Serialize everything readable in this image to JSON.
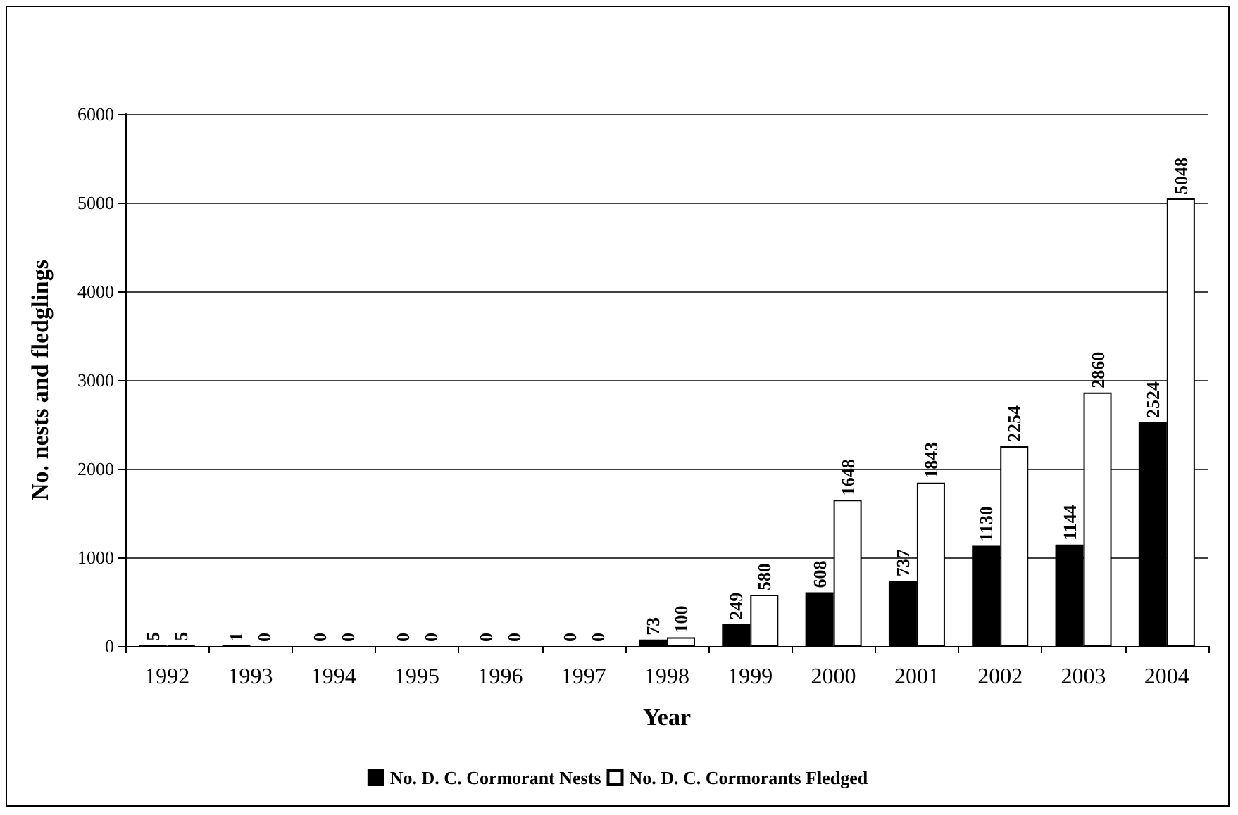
{
  "chart_data": {
    "type": "bar",
    "xlabel": "Year",
    "ylabel": "No. nests and fledglings",
    "categories": [
      "1992",
      "1993",
      "1994",
      "1995",
      "1996",
      "1997",
      "1998",
      "1999",
      "2000",
      "2001",
      "2002",
      "2003",
      "2004"
    ],
    "series": [
      {
        "name": "No. D. C. Cormorant Nests",
        "color": "#000000",
        "values": [
          5,
          1,
          0,
          0,
          0,
          0,
          73,
          249,
          608,
          737,
          1130,
          1144,
          2524
        ]
      },
      {
        "name": "No. D. C. Cormorants Fledged",
        "color": "#ffffff",
        "values": [
          5,
          0,
          0,
          0,
          0,
          0,
          100,
          580,
          1648,
          1843,
          2254,
          2860,
          5048
        ]
      }
    ],
    "ylim": [
      0,
      6000
    ],
    "yticks": [
      0,
      1000,
      2000,
      3000,
      4000,
      5000,
      6000
    ],
    "grid": "y",
    "legend": "bottom",
    "data_labels": true
  }
}
